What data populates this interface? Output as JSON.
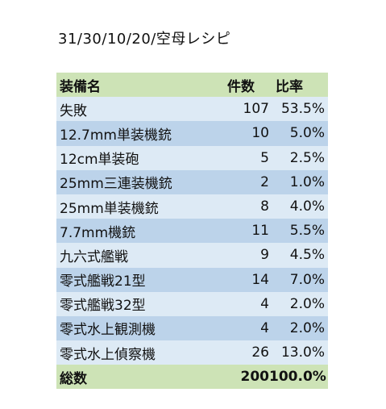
{
  "title": "31/30/10/20/空母レシピ",
  "header": {
    "name": "装備名",
    "count": "件数",
    "ratio": "比率"
  },
  "rows": [
    {
      "name": "失敗",
      "count": "107",
      "ratio": "53.5%"
    },
    {
      "name": "12.7mm単装機銃",
      "count": "10",
      "ratio": "5.0%"
    },
    {
      "name": "12cm単装砲",
      "count": "5",
      "ratio": "2.5%"
    },
    {
      "name": "25mm三連装機銃",
      "count": "2",
      "ratio": "1.0%"
    },
    {
      "name": "25mm単装機銃",
      "count": "8",
      "ratio": "4.0%"
    },
    {
      "name": "7.7mm機銃",
      "count": "11",
      "ratio": "5.5%"
    },
    {
      "name": "九六式艦戦",
      "count": "9",
      "ratio": "4.5%"
    },
    {
      "name": "零式艦戦21型",
      "count": "14",
      "ratio": "7.0%"
    },
    {
      "name": "零式艦戦32型",
      "count": "4",
      "ratio": "2.0%"
    },
    {
      "name": "零式水上観測機",
      "count": "4",
      "ratio": "2.0%"
    },
    {
      "name": "零式水上偵察機",
      "count": "26",
      "ratio": "13.0%"
    }
  ],
  "total": {
    "name": "総数",
    "count": "200",
    "ratio": "100.0%"
  },
  "colors": {
    "header_bg": "#cde3b6",
    "row_light": "#ddeaf5",
    "row_dark": "#bcd3ea"
  }
}
